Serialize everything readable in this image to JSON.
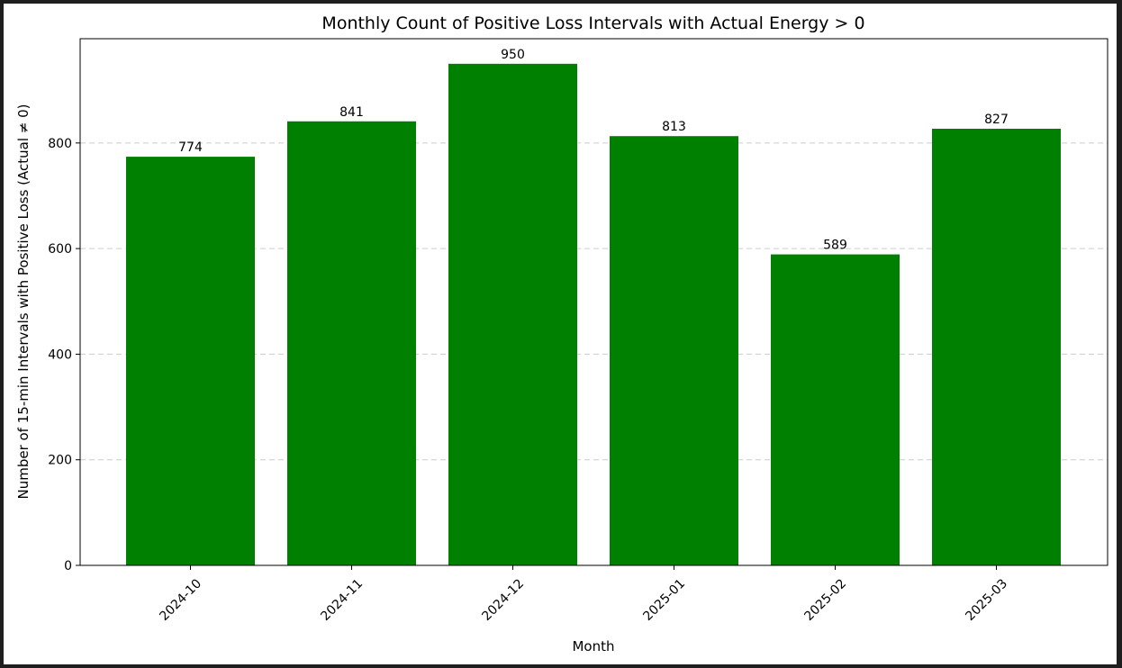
{
  "chart_data": {
    "type": "bar",
    "title": "Monthly Count of Positive Loss Intervals with Actual Energy > 0",
    "xlabel": "Month",
    "ylabel": "Number of 15-min Intervals with Positive Loss (Actual ≠ 0)",
    "categories": [
      "2024-10",
      "2024-11",
      "2024-12",
      "2025-01",
      "2025-02",
      "2025-03"
    ],
    "values": [
      774,
      841,
      950,
      813,
      589,
      827
    ],
    "data_labels": [
      "774",
      "841",
      "950",
      "813",
      "589",
      "827"
    ],
    "ylim": [
      0,
      997.5
    ],
    "yticks": [
      0,
      200,
      400,
      600,
      800
    ],
    "grid": "y-dashed",
    "bar_color": "#008000",
    "x_tick_rotation": 45
  }
}
